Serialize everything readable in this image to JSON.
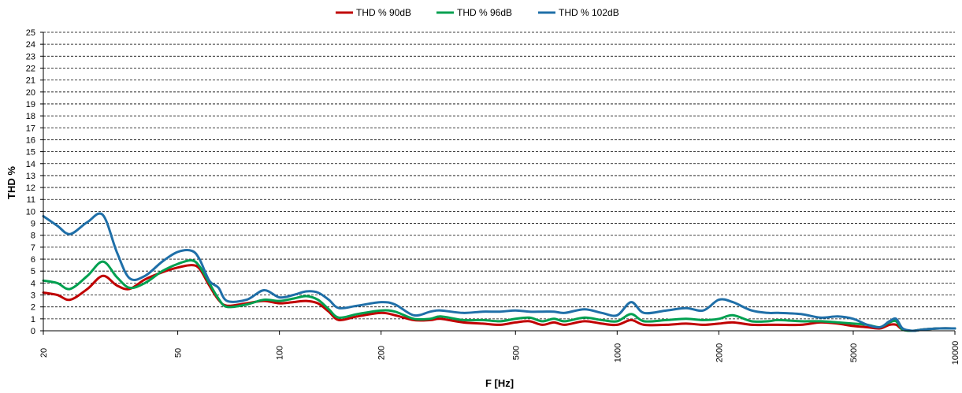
{
  "chart_data": {
    "type": "line",
    "xlabel": "F [Hz]",
    "ylabel": "THD %",
    "x_scale": "log",
    "xlim": [
      20,
      10000
    ],
    "ylim": [
      0,
      25
    ],
    "x_ticks": [
      20,
      50,
      100,
      200,
      500,
      1000,
      2000,
      5000,
      10000
    ],
    "x_tick_labels": [
      "20",
      "50",
      "100",
      "200",
      "500",
      "1000",
      "2000",
      "5000",
      "10000"
    ],
    "y_ticks": [
      0,
      1,
      2,
      3,
      4,
      5,
      6,
      7,
      8,
      9,
      10,
      11,
      12,
      13,
      14,
      15,
      16,
      17,
      18,
      19,
      20,
      21,
      22,
      23,
      24,
      25
    ],
    "grid": "horizontal dashed",
    "legend_position": "top-center",
    "series": [
      {
        "name": "THD % 90dB",
        "color": "#c00000",
        "x": [
          20,
          22,
          24,
          27,
          30,
          33,
          36,
          40,
          45,
          50,
          55,
          58,
          62,
          66,
          70,
          80,
          90,
          100,
          110,
          120,
          130,
          140,
          150,
          170,
          200,
          220,
          250,
          280,
          300,
          350,
          400,
          450,
          500,
          550,
          600,
          650,
          700,
          800,
          900,
          1000,
          1100,
          1200,
          1400,
          1600,
          1800,
          2000,
          2200,
          2500,
          2800,
          3000,
          3500,
          4000,
          4500,
          5000,
          5500,
          6000,
          6400,
          6700,
          7000,
          7500,
          8000,
          9000,
          10000
        ],
        "y": [
          3.2,
          3.0,
          2.6,
          3.5,
          4.6,
          3.8,
          3.5,
          4.3,
          4.9,
          5.3,
          5.5,
          5.2,
          3.8,
          2.6,
          2.1,
          2.3,
          2.5,
          2.3,
          2.4,
          2.5,
          2.3,
          1.6,
          0.9,
          1.2,
          1.5,
          1.3,
          0.9,
          0.9,
          1.0,
          0.7,
          0.6,
          0.5,
          0.7,
          0.8,
          0.5,
          0.7,
          0.5,
          0.8,
          0.6,
          0.5,
          0.9,
          0.5,
          0.5,
          0.6,
          0.5,
          0.6,
          0.7,
          0.5,
          0.5,
          0.5,
          0.5,
          0.7,
          0.6,
          0.4,
          0.3,
          0.2,
          0.5,
          0.5,
          0.1,
          0.0,
          0.1,
          0.2,
          0.2
        ]
      },
      {
        "name": "THD % 96dB",
        "color": "#00a050",
        "x": [
          20,
          22,
          24,
          27,
          30,
          33,
          36,
          40,
          45,
          50,
          55,
          58,
          62,
          66,
          70,
          80,
          90,
          100,
          110,
          120,
          130,
          140,
          150,
          170,
          200,
          220,
          250,
          280,
          300,
          350,
          400,
          450,
          500,
          550,
          600,
          650,
          700,
          800,
          900,
          1000,
          1100,
          1200,
          1400,
          1600,
          1800,
          2000,
          2200,
          2500,
          2800,
          3000,
          3500,
          4000,
          4500,
          5000,
          5500,
          6000,
          6400,
          6700,
          7000,
          7500,
          8000,
          9000,
          10000
        ],
        "y": [
          4.2,
          4.0,
          3.5,
          4.6,
          5.8,
          4.5,
          3.6,
          4.0,
          5.0,
          5.6,
          5.9,
          5.4,
          4.0,
          2.7,
          2.0,
          2.2,
          2.6,
          2.5,
          2.7,
          2.9,
          2.6,
          1.8,
          1.1,
          1.4,
          1.7,
          1.6,
          1.0,
          1.0,
          1.2,
          0.9,
          0.9,
          0.8,
          1.0,
          1.1,
          0.8,
          1.0,
          0.8,
          1.1,
          0.9,
          0.8,
          1.4,
          0.8,
          0.9,
          1.0,
          0.9,
          1.0,
          1.3,
          0.8,
          0.8,
          0.9,
          0.8,
          0.8,
          0.7,
          0.6,
          0.5,
          0.3,
          0.7,
          0.8,
          0.1,
          0.0,
          0.1,
          0.2,
          0.2
        ]
      },
      {
        "name": "THD % 102dB",
        "color": "#1f6fa8",
        "x": [
          20,
          22,
          24,
          27,
          30,
          33,
          36,
          40,
          45,
          50,
          55,
          58,
          62,
          66,
          70,
          80,
          90,
          100,
          110,
          120,
          130,
          140,
          150,
          170,
          200,
          220,
          250,
          280,
          300,
          350,
          400,
          450,
          500,
          550,
          600,
          650,
          700,
          800,
          900,
          1000,
          1100,
          1200,
          1400,
          1600,
          1800,
          2000,
          2200,
          2500,
          2800,
          3000,
          3500,
          4000,
          4500,
          5000,
          5500,
          6000,
          6400,
          6700,
          7000,
          7500,
          8000,
          9000,
          10000
        ],
        "y": [
          9.6,
          8.8,
          8.1,
          9.1,
          9.7,
          6.6,
          4.4,
          4.6,
          5.8,
          6.6,
          6.7,
          6.0,
          4.2,
          3.6,
          2.5,
          2.6,
          3.4,
          2.8,
          3.0,
          3.3,
          3.2,
          2.6,
          1.9,
          2.1,
          2.4,
          2.2,
          1.3,
          1.6,
          1.7,
          1.5,
          1.6,
          1.6,
          1.7,
          1.6,
          1.6,
          1.6,
          1.5,
          1.8,
          1.5,
          1.3,
          2.4,
          1.5,
          1.7,
          1.9,
          1.7,
          2.6,
          2.4,
          1.7,
          1.5,
          1.5,
          1.4,
          1.1,
          1.2,
          1.0,
          0.5,
          0.3,
          0.8,
          1.0,
          0.2,
          0.0,
          0.1,
          0.2,
          0.2
        ]
      }
    ]
  }
}
